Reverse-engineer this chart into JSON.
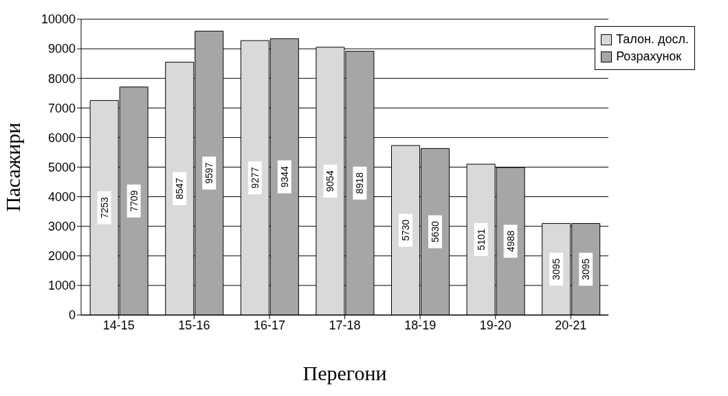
{
  "chart_data": {
    "type": "bar",
    "xlabel": "Перегони",
    "ylabel": "Пасажири",
    "categories": [
      "14-15",
      "15-16",
      "16-17",
      "17-18",
      "18-19",
      "19-20",
      "20-21"
    ],
    "series": [
      {
        "name": "Талон. досл.",
        "color": "#d9d9d9",
        "values": [
          7253,
          8547,
          9277,
          9054,
          5730,
          5101,
          3095
        ]
      },
      {
        "name": "Розрахунок",
        "color": "#a6a6a6",
        "values": [
          7709,
          9597,
          9344,
          8918,
          5630,
          4988,
          3095
        ]
      }
    ],
    "ylim": [
      0,
      10000
    ],
    "yticks": [
      0,
      1000,
      2000,
      3000,
      4000,
      5000,
      6000,
      7000,
      8000,
      9000,
      10000
    ],
    "grid": "y",
    "legend": "top right",
    "data_labels": true
  }
}
